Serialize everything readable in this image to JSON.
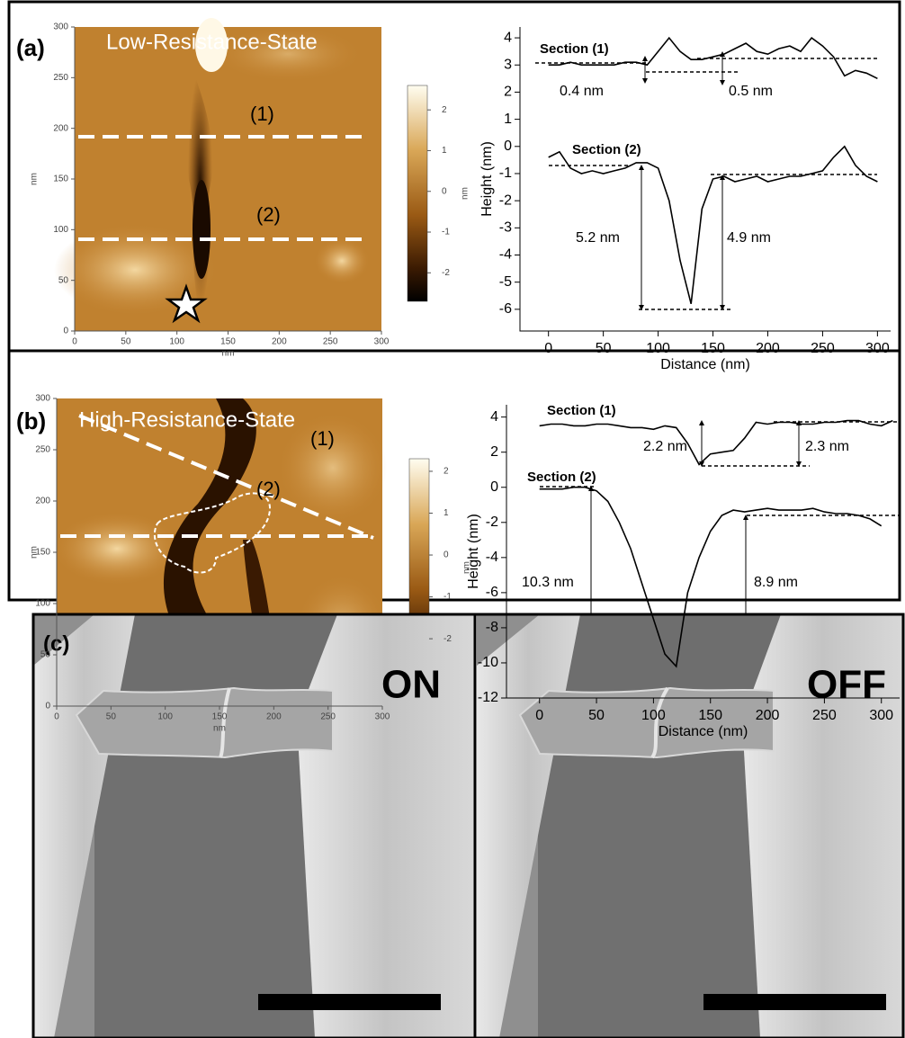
{
  "panels": [
    {
      "label": "(a)",
      "image": {
        "title": "Low-Resistance-State",
        "xlim": [
          0,
          300
        ],
        "ylim": [
          0,
          300
        ],
        "xticks": [
          0,
          50,
          100,
          150,
          200,
          250,
          300
        ],
        "yticks": [
          0,
          50,
          100,
          150,
          200,
          250,
          300
        ],
        "xlabel": "nm",
        "ylabel": "nm",
        "clim": [
          -2.7,
          2.6
        ],
        "colorbar_ticks": [
          2,
          1,
          0,
          -1,
          -2
        ],
        "colorbar_label": "nm",
        "line_labels": [
          "(1)",
          "(2)"
        ]
      }
    },
    {
      "label": "(b)",
      "image": {
        "title": "High-Resistance-State",
        "xlim": [
          0,
          300
        ],
        "ylim": [
          0,
          300
        ],
        "xticks": [
          0,
          50,
          100,
          150,
          200,
          250,
          300
        ],
        "yticks": [
          0,
          50,
          100,
          150,
          200,
          250,
          300
        ],
        "xlabel": "nm",
        "ylabel": "nm",
        "clim": [
          -2.9,
          2.3
        ],
        "colorbar_ticks": [
          2,
          1,
          0,
          -1,
          -2
        ],
        "colorbar_label": "nm",
        "line_labels": [
          "(1)",
          "(2)"
        ]
      }
    }
  ],
  "chart_data": [
    {
      "type": "line",
      "xlabel": "Distance (nm)",
      "ylabel": "Height (nm)",
      "xlim": [
        -26,
        312
      ],
      "ylim": [
        -6.8,
        4.4
      ],
      "xticks": [
        0,
        50,
        100,
        150,
        200,
        250,
        300
      ],
      "yticks": [
        4,
        3,
        2,
        1,
        0,
        -1,
        -2,
        -3,
        -4,
        -5,
        -6
      ],
      "x": [
        0,
        10,
        20,
        30,
        40,
        50,
        60,
        70,
        80,
        90,
        100,
        110,
        120,
        130,
        140,
        150,
        160,
        170,
        180,
        190,
        200,
        210,
        220,
        230,
        240,
        250,
        260,
        270,
        280,
        290,
        300
      ],
      "series": [
        {
          "name": "Section (1)",
          "color": "#000000",
          "values": [
            3.0,
            3.0,
            3.1,
            3.0,
            3.0,
            3.0,
            3.0,
            3.1,
            3.1,
            3.0,
            3.5,
            4.0,
            3.5,
            3.2,
            3.2,
            3.3,
            3.4,
            3.6,
            3.8,
            3.5,
            3.4,
            3.6,
            3.7,
            3.5,
            4.0,
            3.7,
            3.3,
            2.6,
            2.8,
            2.7,
            2.5
          ]
        },
        {
          "name": "Section (2)",
          "color": "#000000",
          "values": [
            -0.4,
            -0.2,
            -0.8,
            -1.0,
            -0.9,
            -1.0,
            -0.9,
            -0.8,
            -0.6,
            -0.6,
            -0.8,
            -2.0,
            -4.2,
            -5.8,
            -2.3,
            -1.2,
            -1.1,
            -1.3,
            -1.2,
            -1.1,
            -1.3,
            -1.2,
            -1.1,
            -1.1,
            -1.0,
            -0.9,
            -0.4,
            0.0,
            -0.7,
            -1.1,
            -1.3
          ]
        }
      ],
      "annotations": [
        "0.4 nm",
        "0.5 nm",
        "5.2 nm",
        "4.9 nm"
      ]
    },
    {
      "type": "line",
      "xlabel": "Distance (nm)",
      "ylabel": "Height (nm)",
      "xlim": [
        -29,
        316
      ],
      "ylim": [
        -12,
        4.7
      ],
      "xticks": [
        0,
        50,
        100,
        150,
        200,
        250,
        300
      ],
      "yticks": [
        4,
        2,
        0,
        -2,
        -4,
        -6,
        -8,
        -10,
        -12
      ],
      "x": [
        0,
        10,
        20,
        30,
        40,
        50,
        60,
        70,
        80,
        90,
        100,
        110,
        120,
        130,
        140,
        150,
        160,
        170,
        180,
        190,
        200,
        210,
        220,
        230,
        240,
        250,
        260,
        270,
        280,
        290,
        300,
        310
      ],
      "series": [
        {
          "name": "Section (1)",
          "color": "#000000",
          "values": [
            3.5,
            3.6,
            3.6,
            3.5,
            3.5,
            3.6,
            3.6,
            3.5,
            3.4,
            3.4,
            3.3,
            3.5,
            3.4,
            2.5,
            1.3,
            1.9,
            2.0,
            2.1,
            2.8,
            3.7,
            3.6,
            3.7,
            3.7,
            3.6,
            3.6,
            3.7,
            3.7,
            3.8,
            3.8,
            3.6,
            3.5,
            3.8
          ]
        },
        {
          "name": "Section (2)",
          "color": "#000000",
          "values": [
            -0.1,
            -0.1,
            -0.1,
            0.0,
            0.0,
            -0.2,
            -0.8,
            -2.0,
            -3.5,
            -5.5,
            -7.5,
            -9.5,
            -10.2,
            -6.0,
            -4.0,
            -2.5,
            -1.6,
            -1.3,
            -1.4,
            -1.3,
            -1.2,
            -1.3,
            -1.3,
            -1.3,
            -1.2,
            -1.4,
            -1.5,
            -1.5,
            -1.6,
            -1.8,
            -2.2,
            null
          ]
        }
      ],
      "annotations": [
        "2.2 nm",
        "2.3 nm",
        "10.3 nm",
        "8.9 nm"
      ]
    }
  ],
  "sem": {
    "label": "(c)",
    "images": [
      "ON",
      "OFF"
    ]
  }
}
